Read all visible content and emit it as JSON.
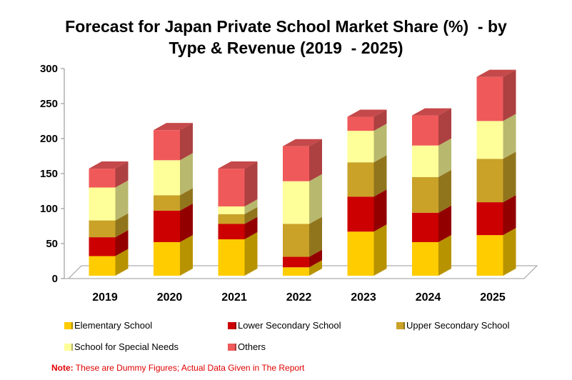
{
  "chart_data": {
    "type": "bar",
    "stacked": true,
    "style": "3d",
    "title_line1": "Forecast for Japan Private School Market Share (%)  - by",
    "title_line2": "Type & Revenue (2019  - 2025)",
    "categories": [
      "2019",
      "2020",
      "2021",
      "2022",
      "2023",
      "2024",
      "2025"
    ],
    "ylim": [
      0,
      300
    ],
    "yticks": [
      "0",
      "50",
      "100",
      "150",
      "200",
      "250",
      "300"
    ],
    "grid": false,
    "legend_position": "bottom",
    "series": [
      {
        "name": "Elementary School",
        "color": "#FFCC00",
        "values": [
          28,
          48,
          52,
          12,
          63,
          48,
          58
        ]
      },
      {
        "name": "Lower Secondary School",
        "color": "#CC0000",
        "values": [
          27,
          45,
          22,
          15,
          50,
          42,
          47
        ]
      },
      {
        "name": "Upper Secondary School",
        "color": "#C9A227",
        "values": [
          24,
          22,
          14,
          47,
          49,
          51,
          62
        ]
      },
      {
        "name": "School for Special Needs",
        "color": "#FFFF99",
        "values": [
          47,
          50,
          11,
          61,
          45,
          45,
          54
        ]
      },
      {
        "name": "Others",
        "color": "#F0595A",
        "values": [
          27,
          43,
          54,
          50,
          20,
          43,
          63
        ]
      }
    ]
  },
  "note": {
    "label": "Note:",
    "text": " These are Dummy Figures; Actual Data Given in The Report"
  }
}
